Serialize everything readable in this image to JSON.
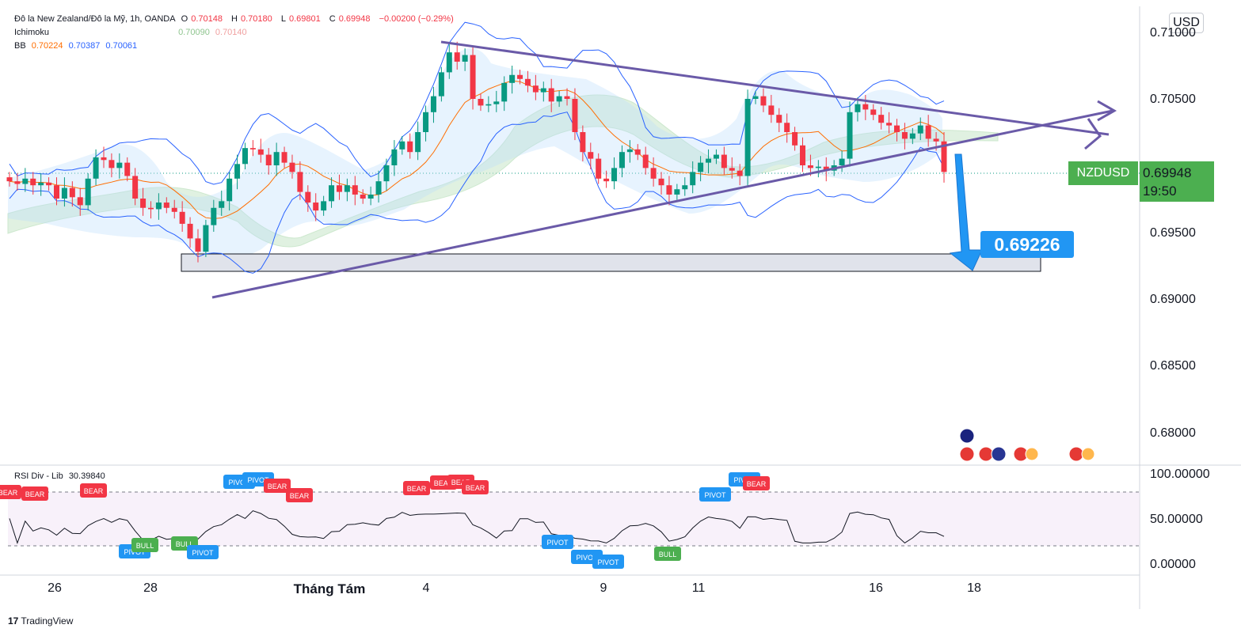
{
  "legend": {
    "symbol_line": "Đô la New Zealand/Đô la Mỹ, 1h, OANDA",
    "o_label": "O",
    "o_value": "0.70148",
    "h_label": "H",
    "h_value": "0.70180",
    "l_label": "L",
    "l_value": "0.69801",
    "c_label": "C",
    "c_value": "0.69948",
    "change": "−0.00200 (−0.29%)",
    "ichimoku_label": "Ichimoku",
    "ichimoku_v1": "0.70090",
    "ichimoku_v2": "0.70140",
    "bb_label": "BB",
    "bb_v1": "0.70224",
    "bb_v2": "0.70387",
    "bb_v3": "0.70061"
  },
  "price_axis": {
    "currency": "USD",
    "ticks": [
      "0.71000",
      "0.70500",
      "0.70000",
      "0.69500",
      "0.69000",
      "0.68500",
      "0.68000"
    ]
  },
  "current_price": {
    "symbol": "NZDUSD",
    "price": "0.69948",
    "countdown": "19:50"
  },
  "target": {
    "price": "0.69226"
  },
  "rsi": {
    "title": "RSI Div - Lib",
    "value": "30.39840",
    "ticks": [
      "100.00000",
      "50.00000",
      "0.00000"
    ],
    "signals": [
      {
        "type": "BEAR",
        "x": 10,
        "y": 622
      },
      {
        "type": "BEAR",
        "x": 44,
        "y": 624
      },
      {
        "type": "BEAR",
        "x": 118,
        "y": 620
      },
      {
        "type": "PIVOT",
        "x": 170,
        "y": 697
      },
      {
        "type": "BULL",
        "x": 183,
        "y": 689
      },
      {
        "type": "BULL",
        "x": 233,
        "y": 687
      },
      {
        "type": "PIVOT",
        "x": 256,
        "y": 698
      },
      {
        "type": "PIVOT",
        "x": 302,
        "y": 609
      },
      {
        "type": "PIVOT",
        "x": 326,
        "y": 606
      },
      {
        "type": "BEAR",
        "x": 350,
        "y": 614
      },
      {
        "type": "BEAR",
        "x": 378,
        "y": 626
      },
      {
        "type": "BEAR",
        "x": 526,
        "y": 617
      },
      {
        "type": "BEAR",
        "x": 560,
        "y": 610
      },
      {
        "type": "BEAR",
        "x": 582,
        "y": 609
      },
      {
        "type": "BEAR",
        "x": 600,
        "y": 616
      },
      {
        "type": "PIVOT",
        "x": 704,
        "y": 685
      },
      {
        "type": "PIVOT",
        "x": 741,
        "y": 704
      },
      {
        "type": "PIVOT",
        "x": 768,
        "y": 710
      },
      {
        "type": "BULL",
        "x": 843,
        "y": 700
      },
      {
        "type": "PIVOT",
        "x": 903,
        "y": 625
      },
      {
        "type": "PIVOT",
        "x": 940,
        "y": 606
      },
      {
        "type": "BEAR",
        "x": 955,
        "y": 611
      }
    ]
  },
  "x_axis": {
    "labels": [
      {
        "text": "26",
        "bold": false
      },
      {
        "text": "28",
        "bold": false
      },
      {
        "text": "Tháng Tám",
        "bold": true
      },
      {
        "text": "4",
        "bold": false
      },
      {
        "text": "9",
        "bold": false
      },
      {
        "text": "11",
        "bold": false
      },
      {
        "text": "16",
        "bold": false
      },
      {
        "text": "18",
        "bold": false
      }
    ]
  },
  "branding": {
    "name": "TradingView"
  },
  "colors": {
    "bull": "#089981",
    "bear": "#f23645",
    "bb_band": "#2962ff",
    "bb_basis": "#ff6d00",
    "triangle": "#6a5aa8",
    "target_arrow": "#2196f3",
    "signal_bear": "#f23645",
    "signal_pivot": "#2196f3",
    "signal_bull": "#4caf50"
  },
  "chart_data": {
    "type": "line",
    "title": "Đô la New Zealand/Đô la Mỹ, 1h, OANDA",
    "x_tick_labels": [
      "26",
      "28",
      "Tháng Tám",
      "4",
      "9",
      "11",
      "16",
      "18"
    ],
    "ylim": [
      0.6775,
      0.712
    ],
    "series": [
      {
        "name": "NZDUSD",
        "points": [
          0.6988,
          0.6986,
          0.699,
          0.6985,
          0.6987,
          0.6985,
          0.6975,
          0.6983,
          0.6976,
          0.697,
          0.699,
          0.7006,
          0.7004,
          0.6998,
          0.7002,
          0.6992,
          0.6975,
          0.6968,
          0.6967,
          0.6972,
          0.6968,
          0.6965,
          0.6956,
          0.6945,
          0.6935,
          0.6955,
          0.6968,
          0.6973,
          0.699,
          0.7001,
          0.7013,
          0.7012,
          0.7008,
          0.7,
          0.701,
          0.7002,
          0.6995,
          0.698,
          0.6972,
          0.6966,
          0.6973,
          0.6985,
          0.698,
          0.6985,
          0.6978,
          0.6975,
          0.6978,
          0.6988,
          0.7,
          0.7012,
          0.7018,
          0.701,
          0.7025,
          0.704,
          0.7052,
          0.707,
          0.7085,
          0.7078,
          0.7083,
          0.705,
          0.7045,
          0.7046,
          0.7048,
          0.7062,
          0.7068,
          0.7065,
          0.706,
          0.7055,
          0.7058,
          0.7048,
          0.7052,
          0.705,
          0.7025,
          0.701,
          0.7005,
          0.699,
          0.6988,
          0.6998,
          0.701,
          0.7012,
          0.7008,
          0.6998,
          0.699,
          0.6985,
          0.6978,
          0.6982,
          0.6985,
          0.6995,
          0.7002,
          0.7005,
          0.7008,
          0.6998,
          0.6996,
          0.6992,
          0.705,
          0.7052,
          0.7045,
          0.7038,
          0.7032,
          0.7025,
          0.7015,
          0.7,
          0.6998,
          0.6999,
          0.6996,
          0.7,
          0.7005,
          0.704,
          0.7046,
          0.7042,
          0.7038,
          0.7032,
          0.703,
          0.7025,
          0.702,
          0.7024,
          0.703,
          0.702,
          0.7018,
          0.6995
        ]
      }
    ],
    "annotations": {
      "target_price": 0.69226,
      "last_price": 0.69948,
      "support_zone": [
        0.6921,
        0.6934
      ]
    }
  }
}
